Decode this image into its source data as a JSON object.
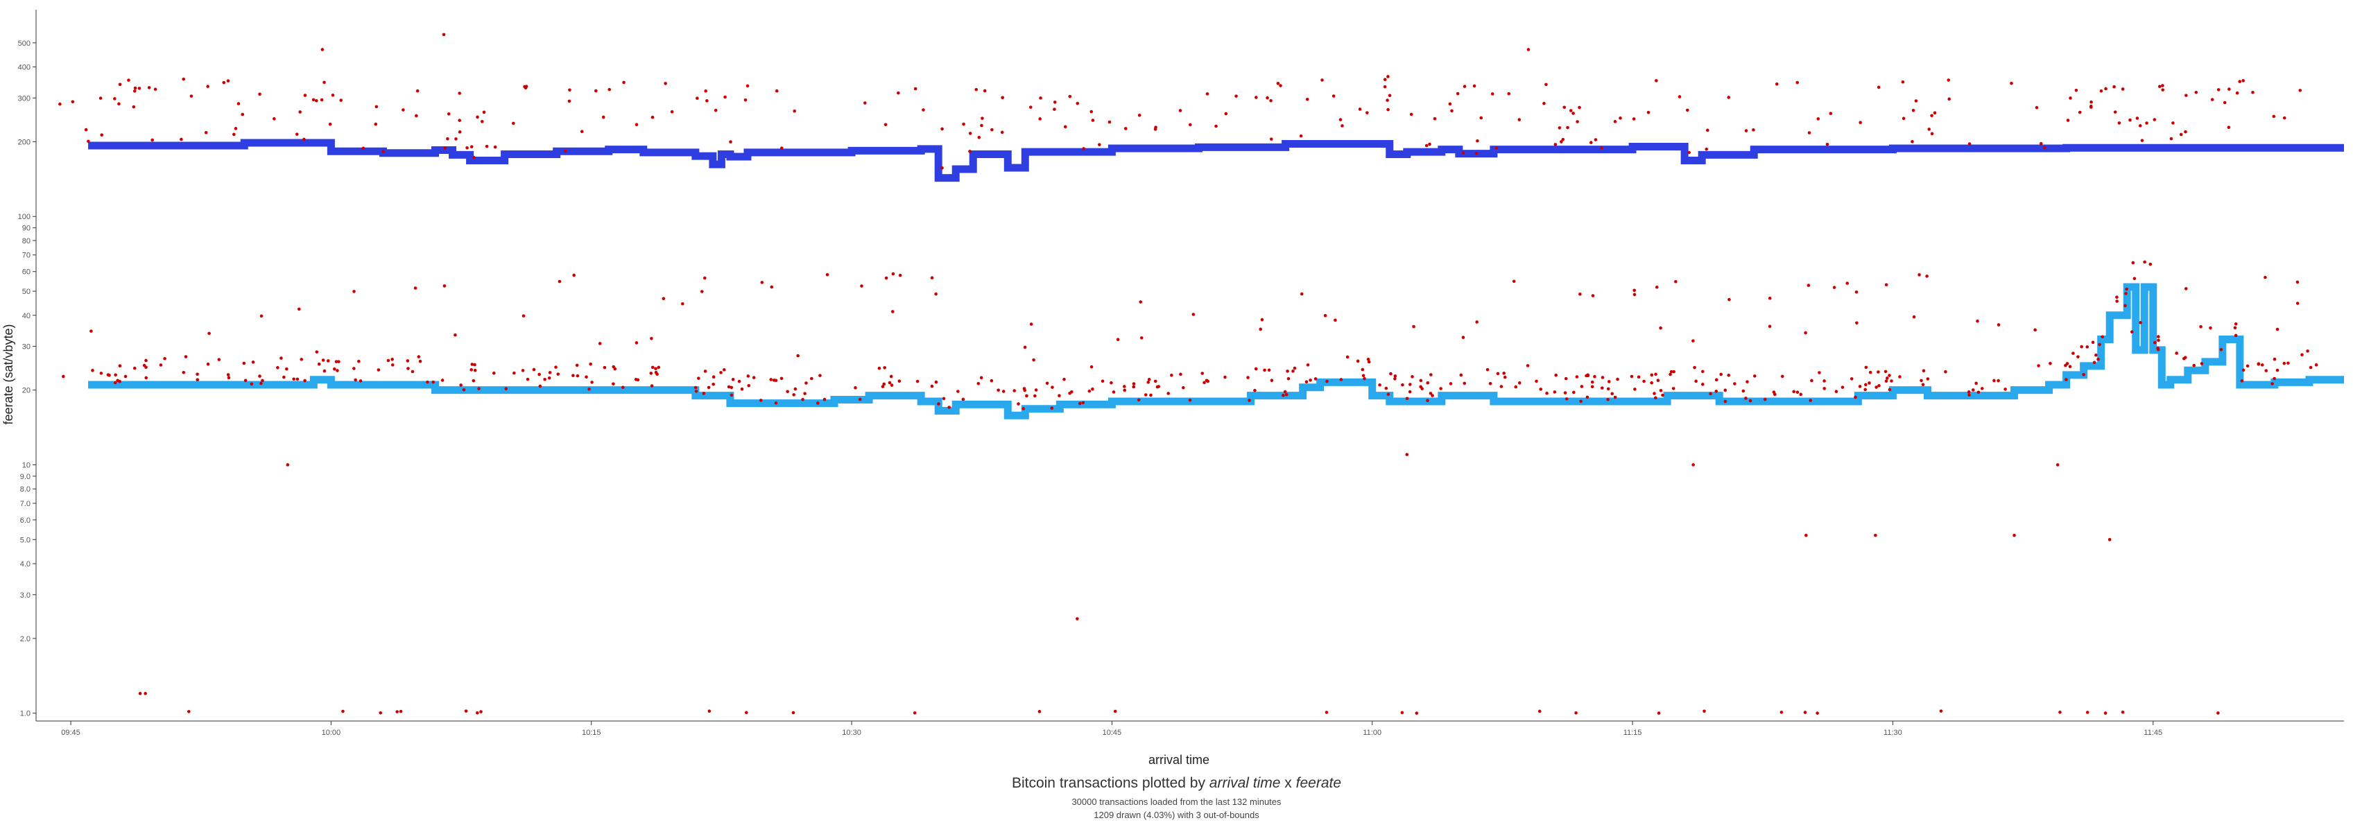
{
  "chart_data": {
    "type": "scatter",
    "xlabel": "arrival time",
    "ylabel": "feerate (sat/vbyte)",
    "y_scale": "log",
    "ylim": [
      0.93,
      680
    ],
    "xlim": [
      "09:43",
      "11:56"
    ],
    "x_ticks": [
      "09:45",
      "10:00",
      "10:15",
      "10:30",
      "10:45",
      "11:00",
      "11:15",
      "11:30",
      "11:45"
    ],
    "y_ticks": [
      {
        "value": 500,
        "label": "500"
      },
      {
        "value": 400,
        "label": "400"
      },
      {
        "value": 300,
        "label": "300"
      },
      {
        "value": 200,
        "label": "200"
      },
      {
        "value": 100,
        "label": "100"
      },
      {
        "value": 90,
        "label": "90"
      },
      {
        "value": 80,
        "label": "80"
      },
      {
        "value": 70,
        "label": "70"
      },
      {
        "value": 60,
        "label": "60"
      },
      {
        "value": 50,
        "label": "50"
      },
      {
        "value": 40,
        "label": "40"
      },
      {
        "value": 30,
        "label": "30"
      },
      {
        "value": 20,
        "label": "20"
      },
      {
        "value": 10,
        "label": "10"
      },
      {
        "value": 9,
        "label": "9.0"
      },
      {
        "value": 8,
        "label": "8.0"
      },
      {
        "value": 7,
        "label": "7.0"
      },
      {
        "value": 6,
        "label": "6.0"
      },
      {
        "value": 5,
        "label": "5.0"
      },
      {
        "value": 4,
        "label": "4.0"
      },
      {
        "value": 3,
        "label": "3.0"
      },
      {
        "value": 2,
        "label": "2.0"
      },
      {
        "value": 1,
        "label": "1.0"
      }
    ],
    "colors": {
      "points": "#cc0000",
      "upper_line": "#2f3ee0",
      "lower_line": "#2aa8ee",
      "axis": "#333333"
    },
    "series": [
      {
        "kind": "step-line",
        "color": "#2f3ee0",
        "points": [
          [
            "09:46",
            193
          ],
          [
            "09:55",
            198
          ],
          [
            "10:00",
            183
          ],
          [
            "10:03",
            180
          ],
          [
            "10:06",
            185
          ],
          [
            "10:07",
            177
          ],
          [
            "10:08",
            168
          ],
          [
            "10:10",
            178
          ],
          [
            "10:13",
            183
          ],
          [
            "10:16",
            186
          ],
          [
            "10:18",
            181
          ],
          [
            "10:21",
            175
          ],
          [
            "10:22",
            162
          ],
          [
            "10:22.5",
            178
          ],
          [
            "10:23",
            174
          ],
          [
            "10:24",
            181
          ],
          [
            "10:30",
            184
          ],
          [
            "10:34",
            187
          ],
          [
            "10:35",
            143
          ],
          [
            "10:36",
            155
          ],
          [
            "10:37",
            178
          ],
          [
            "10:39",
            157
          ],
          [
            "10:40",
            182
          ],
          [
            "10:45",
            188
          ],
          [
            "10:50",
            190
          ],
          [
            "10:55",
            196
          ],
          [
            "11:01",
            178
          ],
          [
            "11:02",
            182
          ],
          [
            "11:04",
            186
          ],
          [
            "11:05",
            179
          ],
          [
            "11:07",
            186
          ],
          [
            "11:15",
            191
          ],
          [
            "11:18",
            168
          ],
          [
            "11:19",
            177
          ],
          [
            "11:22",
            186
          ],
          [
            "11:30",
            188
          ],
          [
            "11:40",
            189
          ],
          [
            "11:56",
            189
          ]
        ]
      },
      {
        "kind": "step-line",
        "color": "#2aa8ee",
        "points": [
          [
            "09:46",
            21
          ],
          [
            "09:59",
            22
          ],
          [
            "10:00",
            21
          ],
          [
            "10:06",
            20
          ],
          [
            "10:21",
            19
          ],
          [
            "10:23",
            17.7
          ],
          [
            "10:29",
            18.3
          ],
          [
            "10:31",
            19
          ],
          [
            "10:34",
            18
          ],
          [
            "10:35",
            16.5
          ],
          [
            "10:36",
            17.5
          ],
          [
            "10:39",
            15.8
          ],
          [
            "10:40",
            16.8
          ],
          [
            "10:42",
            17.5
          ],
          [
            "10:45",
            18
          ],
          [
            "10:53",
            19
          ],
          [
            "10:56",
            20.5
          ],
          [
            "10:57",
            21.5
          ],
          [
            "11:00",
            19
          ],
          [
            "11:01",
            18
          ],
          [
            "11:04",
            19
          ],
          [
            "11:07",
            18
          ],
          [
            "11:17",
            19
          ],
          [
            "11:20",
            18
          ],
          [
            "11:28",
            19
          ],
          [
            "11:30",
            20
          ],
          [
            "11:32",
            19
          ],
          [
            "11:37",
            20
          ],
          [
            "11:39",
            21
          ],
          [
            "11:40",
            23
          ],
          [
            "11:41",
            25
          ],
          [
            "11:42",
            32
          ],
          [
            "11:42.5",
            40
          ],
          [
            "11:43.5",
            52
          ],
          [
            "11:44",
            29
          ],
          [
            "11:44.5",
            52
          ],
          [
            "11:45",
            29
          ],
          [
            "11:45.5",
            21
          ],
          [
            "11:46",
            22
          ],
          [
            "11:47",
            24
          ],
          [
            "11:48",
            26
          ],
          [
            "11:49",
            32
          ],
          [
            "11:50",
            21
          ],
          [
            "11:52",
            21.5
          ],
          [
            "11:54",
            22
          ],
          [
            "11:56",
            22
          ]
        ]
      }
    ],
    "points_note": "red dots (feerate per transaction)"
  },
  "caption": {
    "title_prefix": "Bitcoin transactions plotted by ",
    "title_x": "arrival time",
    "title_sep": " x ",
    "title_y": "feerate",
    "line1": "30000 transactions loaded from the last 132 minutes",
    "line2": "1209 drawn (4.03%) with 3 out-of-bounds"
  }
}
